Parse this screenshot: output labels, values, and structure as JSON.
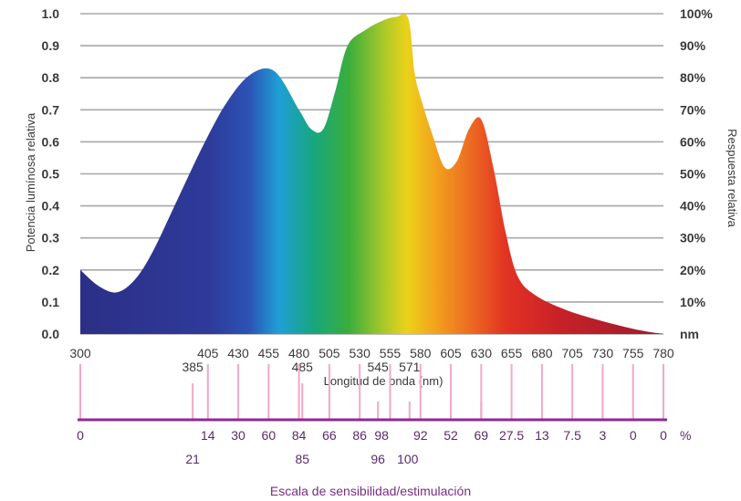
{
  "chart_data": {
    "type": "area",
    "title": "",
    "xlabel": "Longitud de onda (nm)",
    "ylabel": "Potencia lumínosa relativa",
    "ylabel_right": "Respuesta relativa",
    "xlim": [
      300,
      780
    ],
    "ylim": [
      0,
      1.0
    ],
    "grid": true,
    "x_ticks": [
      300,
      405,
      430,
      455,
      480,
      505,
      530,
      555,
      580,
      605,
      630,
      655,
      680,
      705,
      730,
      755,
      780
    ],
    "x_ticks_extra": [
      385,
      485,
      545,
      571
    ],
    "y_ticks": [
      "0.0",
      "0.1",
      "0.2",
      "0.3",
      "0.4",
      "0.5",
      "0.6",
      "0.7",
      "0.8",
      "0.9",
      "1.0"
    ],
    "y_ticks_right": [
      "nm",
      "10%",
      "20%",
      "30%",
      "40%",
      "50%",
      "60%",
      "70%",
      "80%",
      "90%",
      "100%"
    ],
    "series": [
      {
        "x": [
          300,
          315,
          330,
          345,
          360,
          380,
          400,
          420,
          440,
          460,
          480,
          490,
          500,
          510,
          520,
          535,
          550,
          560,
          570,
          575,
          580,
          590,
          600,
          610,
          620,
          630,
          640,
          650,
          660,
          675,
          700,
          730,
          760,
          780
        ],
        "y": [
          0.2,
          0.15,
          0.13,
          0.17,
          0.26,
          0.42,
          0.58,
          0.72,
          0.81,
          0.82,
          0.7,
          0.64,
          0.64,
          0.76,
          0.9,
          0.95,
          0.98,
          0.99,
          0.985,
          0.82,
          0.74,
          0.62,
          0.52,
          0.54,
          0.64,
          0.67,
          0.52,
          0.32,
          0.18,
          0.12,
          0.075,
          0.04,
          0.012,
          0.0
        ]
      }
    ],
    "sensitivity_scale": {
      "title": "Escala de sensibilidad/estimulación",
      "unit": "%",
      "top_values": [
        "0",
        "14",
        "30",
        "60",
        "84",
        "66",
        "86",
        "98",
        "92",
        "52",
        "69",
        "27.5",
        "13",
        "7.5",
        "3",
        "0",
        "0"
      ],
      "bottom_values": [
        "21",
        "85",
        "96",
        "100"
      ]
    }
  }
}
